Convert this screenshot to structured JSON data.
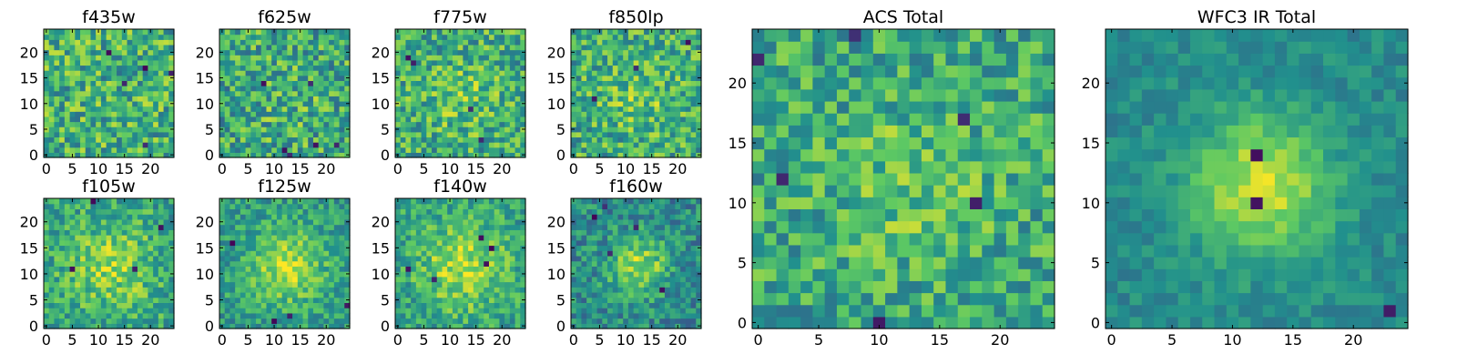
{
  "figure": {
    "colormap": "viridis",
    "colormap_stops": [
      "#440154",
      "#3b528b",
      "#21908d",
      "#5dc963",
      "#fde725"
    ]
  },
  "chart_data": [
    {
      "type": "heatmap",
      "title": "f435w",
      "grid_size": 25,
      "xlim": [
        0,
        24
      ],
      "ylim": [
        0,
        24
      ],
      "xticks": [
        0,
        5,
        10,
        15,
        20
      ],
      "yticks": [
        0,
        5,
        10,
        15,
        20
      ],
      "seed": 11,
      "blob_strength": 0.0,
      "blob_sigma": 6,
      "noise": 0.34,
      "base": 0.64,
      "dark_spots": 5
    },
    {
      "type": "heatmap",
      "title": "f625w",
      "grid_size": 25,
      "xlim": [
        0,
        24
      ],
      "ylim": [
        0,
        24
      ],
      "xticks": [
        0,
        5,
        10,
        15,
        20
      ],
      "yticks": [
        0,
        5,
        10,
        15,
        20
      ],
      "seed": 23,
      "blob_strength": 0.05,
      "blob_sigma": 6,
      "noise": 0.34,
      "base": 0.6,
      "dark_spots": 6
    },
    {
      "type": "heatmap",
      "title": "f775w",
      "grid_size": 25,
      "xlim": [
        0,
        24
      ],
      "ylim": [
        0,
        24
      ],
      "xticks": [
        0,
        5,
        10,
        15,
        20
      ],
      "yticks": [
        0,
        5,
        10,
        15,
        20
      ],
      "seed": 37,
      "blob_strength": 0.12,
      "blob_sigma": 5,
      "noise": 0.32,
      "base": 0.62,
      "dark_spots": 4
    },
    {
      "type": "heatmap",
      "title": "f850lp",
      "grid_size": 25,
      "xlim": [
        0,
        24
      ],
      "ylim": [
        0,
        24
      ],
      "xticks": [
        0,
        5,
        10,
        15,
        20
      ],
      "yticks": [
        0,
        5,
        10,
        15,
        20
      ],
      "seed": 41,
      "blob_strength": 0.12,
      "blob_sigma": 5,
      "noise": 0.32,
      "base": 0.62,
      "dark_spots": 3
    },
    {
      "type": "heatmap",
      "title": "f105w",
      "grid_size": 25,
      "xlim": [
        0,
        24
      ],
      "ylim": [
        0,
        24
      ],
      "xticks": [
        0,
        5,
        10,
        15,
        20
      ],
      "yticks": [
        0,
        5,
        10,
        15,
        20
      ],
      "seed": 53,
      "blob_strength": 0.25,
      "blob_sigma": 6,
      "noise": 0.26,
      "base": 0.58,
      "dark_spots": 4
    },
    {
      "type": "heatmap",
      "title": "f125w",
      "grid_size": 25,
      "xlim": [
        0,
        24
      ],
      "ylim": [
        0,
        24
      ],
      "xticks": [
        0,
        5,
        10,
        15,
        20
      ],
      "yticks": [
        0,
        5,
        10,
        15,
        20
      ],
      "seed": 67,
      "blob_strength": 0.34,
      "blob_sigma": 5,
      "noise": 0.22,
      "base": 0.55,
      "dark_spots": 4
    },
    {
      "type": "heatmap",
      "title": "f140w",
      "grid_size": 25,
      "xlim": [
        0,
        24
      ],
      "ylim": [
        0,
        24
      ],
      "xticks": [
        0,
        5,
        10,
        15,
        20
      ],
      "yticks": [
        0,
        5,
        10,
        15,
        20
      ],
      "seed": 79,
      "blob_strength": 0.3,
      "blob_sigma": 6,
      "noise": 0.24,
      "base": 0.57,
      "dark_spots": 5
    },
    {
      "type": "heatmap",
      "title": "f160w",
      "grid_size": 25,
      "xlim": [
        0,
        24
      ],
      "ylim": [
        0,
        24
      ],
      "xticks": [
        0,
        5,
        10,
        15,
        20
      ],
      "yticks": [
        0,
        5,
        10,
        15,
        20
      ],
      "seed": 83,
      "blob_strength": 0.38,
      "blob_sigma": 4,
      "noise": 0.24,
      "base": 0.48,
      "dark_spots": 5
    },
    {
      "type": "heatmap",
      "title": "ACS Total",
      "grid_size": 25,
      "xlim": [
        0,
        24
      ],
      "ylim": [
        0,
        24
      ],
      "xticks": [
        0,
        5,
        10,
        15,
        20
      ],
      "yticks": [
        0,
        5,
        10,
        15,
        20
      ],
      "seed": 97,
      "blob_strength": 0.12,
      "blob_sigma": 5,
      "noise": 0.28,
      "base": 0.6,
      "dark_spots": 6
    },
    {
      "type": "heatmap",
      "title": "WFC3 IR Total",
      "grid_size": 25,
      "xlim": [
        0,
        24
      ],
      "ylim": [
        0,
        24
      ],
      "xticks": [
        0,
        5,
        10,
        15,
        20
      ],
      "yticks": [
        0,
        5,
        10,
        15,
        20
      ],
      "seed": 101,
      "blob_strength": 0.45,
      "blob_sigma": 4,
      "noise": 0.12,
      "base": 0.48,
      "dark_spots": 3
    }
  ]
}
